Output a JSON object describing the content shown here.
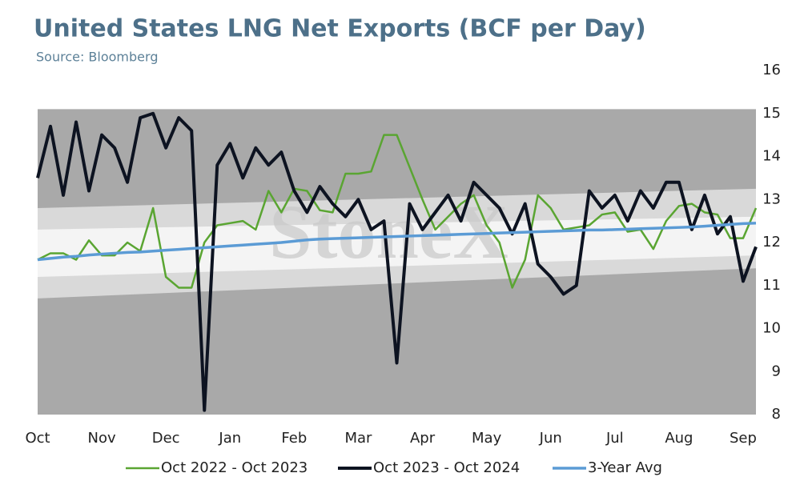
{
  "chart_data": {
    "type": "line",
    "title": "United States LNG Net Exports (BCF per Day)",
    "subtitle": "Source: Bloomberg",
    "watermark": "StoneX",
    "x": [
      0,
      0.2,
      0.4,
      0.6,
      0.8,
      1.0,
      1.2,
      1.4,
      1.6,
      1.8,
      2.0,
      2.2,
      2.4,
      2.6,
      2.8,
      3.0,
      3.2,
      3.4,
      3.6,
      3.8,
      4.0,
      4.2,
      4.4,
      4.6,
      4.8,
      5.0,
      5.2,
      5.4,
      5.6,
      5.8,
      6.0,
      6.2,
      6.4,
      6.6,
      6.8,
      7.0,
      7.2,
      7.4,
      7.6,
      7.8,
      8.0,
      8.2,
      8.4,
      8.6,
      8.8,
      9.0,
      9.2,
      9.4,
      9.6,
      9.8,
      10.0,
      10.2,
      10.4,
      10.6,
      10.8,
      11.0,
      11.2
    ],
    "xlim": [
      0,
      11.2
    ],
    "xticks": [
      {
        "value": 0,
        "label": "Oct"
      },
      {
        "value": 1,
        "label": "Nov"
      },
      {
        "value": 2,
        "label": "Dec"
      },
      {
        "value": 3,
        "label": "Jan"
      },
      {
        "value": 4,
        "label": "Feb"
      },
      {
        "value": 5,
        "label": "Mar"
      },
      {
        "value": 6,
        "label": "Apr"
      },
      {
        "value": 7,
        "label": "May"
      },
      {
        "value": 8,
        "label": "Jun"
      },
      {
        "value": 9,
        "label": "Jul"
      },
      {
        "value": 10,
        "label": "Aug"
      },
      {
        "value": 11,
        "label": "Sep"
      }
    ],
    "ylim": [
      8,
      16
    ],
    "yticks": [
      8,
      9,
      10,
      11,
      12,
      13,
      14,
      15,
      16
    ],
    "band_x": [
      0,
      11.2
    ],
    "bands": [
      {
        "color": "#a9a9a9",
        "lower": [
          8,
          8
        ],
        "upper": [
          15.1,
          15.1
        ]
      },
      {
        "color": "#d9d9d9",
        "lower": [
          10.7,
          11.4
        ],
        "upper": [
          12.8,
          13.25
        ]
      },
      {
        "color": "#f4f4f4",
        "lower": [
          11.2,
          11.7
        ],
        "upper": [
          12.3,
          12.6
        ]
      }
    ],
    "series": [
      {
        "name": "Oct 2022 - Oct 2023",
        "color": "#5aa532",
        "width": 2.5,
        "values": [
          11.6,
          11.75,
          11.75,
          11.6,
          12.05,
          11.7,
          11.7,
          12.0,
          11.8,
          12.8,
          11.2,
          10.95,
          10.95,
          12.0,
          12.4,
          12.45,
          12.5,
          12.3,
          13.2,
          12.7,
          13.25,
          13.2,
          12.75,
          12.7,
          13.6,
          13.6,
          13.65,
          14.5,
          14.5,
          13.75,
          13.0,
          12.3,
          12.6,
          12.9,
          13.1,
          12.4,
          12.0,
          10.95,
          11.6,
          13.1,
          12.8,
          12.3,
          12.35,
          12.4,
          12.65,
          12.7,
          12.25,
          12.3,
          11.85,
          12.5,
          12.85,
          12.9,
          12.7,
          12.65,
          12.1,
          12.1,
          12.8
        ]
      },
      {
        "name": "Oct 2023 - Oct 2024",
        "color": "#0d1321",
        "width": 4,
        "values": [
          13.5,
          14.7,
          13.1,
          14.8,
          13.2,
          14.5,
          14.2,
          13.4,
          14.9,
          15.0,
          14.2,
          14.9,
          14.6,
          8.1,
          13.8,
          14.3,
          13.5,
          14.2,
          13.8,
          14.1,
          13.2,
          12.7,
          13.3,
          12.9,
          12.6,
          13.0,
          12.3,
          12.5,
          9.2,
          12.9,
          12.3,
          12.7,
          13.1,
          12.5,
          13.4,
          13.1,
          12.8,
          12.2,
          12.9,
          11.5,
          11.2,
          10.8,
          11.0,
          13.2,
          12.8,
          13.1,
          12.5,
          13.2,
          12.8,
          13.4,
          13.4,
          12.3,
          13.1,
          12.2,
          12.6,
          11.1,
          11.9
        ]
      },
      {
        "name": "3-Year Avg",
        "color": "#5b9bd5",
        "width": 3.5,
        "values": [
          11.6,
          11.63,
          11.66,
          11.68,
          11.71,
          11.73,
          11.75,
          11.77,
          11.78,
          11.8,
          11.82,
          11.84,
          11.86,
          11.88,
          11.9,
          11.92,
          11.94,
          11.96,
          11.98,
          12.0,
          12.03,
          12.06,
          12.08,
          12.09,
          12.1,
          12.11,
          12.12,
          12.13,
          12.14,
          12.15,
          12.16,
          12.17,
          12.18,
          12.19,
          12.2,
          12.21,
          12.22,
          12.23,
          12.24,
          12.25,
          12.26,
          12.27,
          12.28,
          12.29,
          12.29,
          12.3,
          12.31,
          12.32,
          12.33,
          12.34,
          12.35,
          12.36,
          12.38,
          12.4,
          12.42,
          12.44,
          12.45
        ]
      }
    ]
  }
}
